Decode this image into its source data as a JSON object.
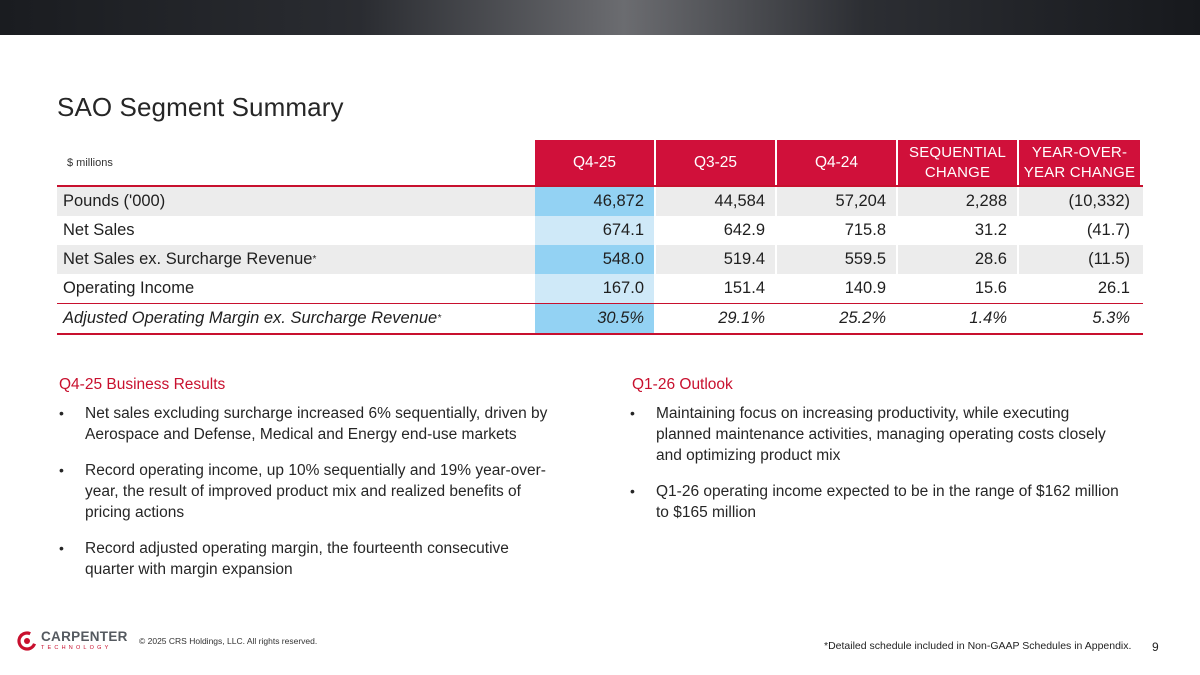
{
  "title": "SAO Segment Summary",
  "table": {
    "unit_label": "$ millions",
    "columns": [
      "Q4-25",
      "Q3-25",
      "Q4-24",
      "SEQUENTIAL\nCHANGE",
      "YEAR-OVER-\nYEAR CHANGE"
    ],
    "rows": [
      {
        "label": "Pounds ('000)",
        "footnote_mark": "",
        "values": [
          "46,872",
          "44,584",
          "57,204",
          "2,288",
          "(10,332)"
        ]
      },
      {
        "label": "Net Sales",
        "footnote_mark": "",
        "values": [
          "674.1",
          "642.9",
          "715.8",
          "31.2",
          "(41.7)"
        ]
      },
      {
        "label": "Net Sales ex. Surcharge Revenue",
        "footnote_mark": "*",
        "values": [
          "548.0",
          "519.4",
          "559.5",
          "28.6",
          "(11.5)"
        ]
      },
      {
        "label": "Operating Income",
        "footnote_mark": "",
        "values": [
          "167.0",
          "151.4",
          "140.9",
          "15.6",
          "26.1"
        ]
      },
      {
        "label": "Adjusted Operating Margin ex. Surcharge Revenue",
        "footnote_mark": "*",
        "values": [
          "30.5%",
          "29.1%",
          "25.2%",
          "1.4%",
          "5.3%"
        ]
      }
    ]
  },
  "business_results": {
    "heading": "Q4-25 Business Results",
    "bullets": [
      "Net sales excluding surcharge increased 6% sequentially, driven by Aerospace and Defense, Medical and Energy end-use markets",
      "Record operating income, up 10% sequentially and 19% year-over-year, the result of improved product mix and realized benefits of pricing actions",
      "Record adjusted operating margin, the fourteenth consecutive quarter with margin expansion"
    ]
  },
  "outlook": {
    "heading": "Q1-26 Outlook",
    "bullets": [
      "Maintaining focus on increasing productivity, while executing planned maintenance activities, managing operating costs closely and optimizing product mix",
      "Q1-26 operating income expected to be in the range of $162 million to $165 million"
    ]
  },
  "footer": {
    "logo_name": "CARPENTER",
    "logo_sub": "TECHNOLOGY",
    "copyright": "© 2025 CRS Holdings, LLC. All rights reserved.",
    "footnote": "*Detailed schedule included in Non-GAAP Schedules in Appendix.",
    "page_number": "9"
  },
  "colors": {
    "accent_red": "#c8102e",
    "header_red": "#d0103a",
    "highlight_blue_dark": "#93d2f3",
    "highlight_blue_light": "#cfe9f8",
    "row_shade": "#ececec"
  }
}
